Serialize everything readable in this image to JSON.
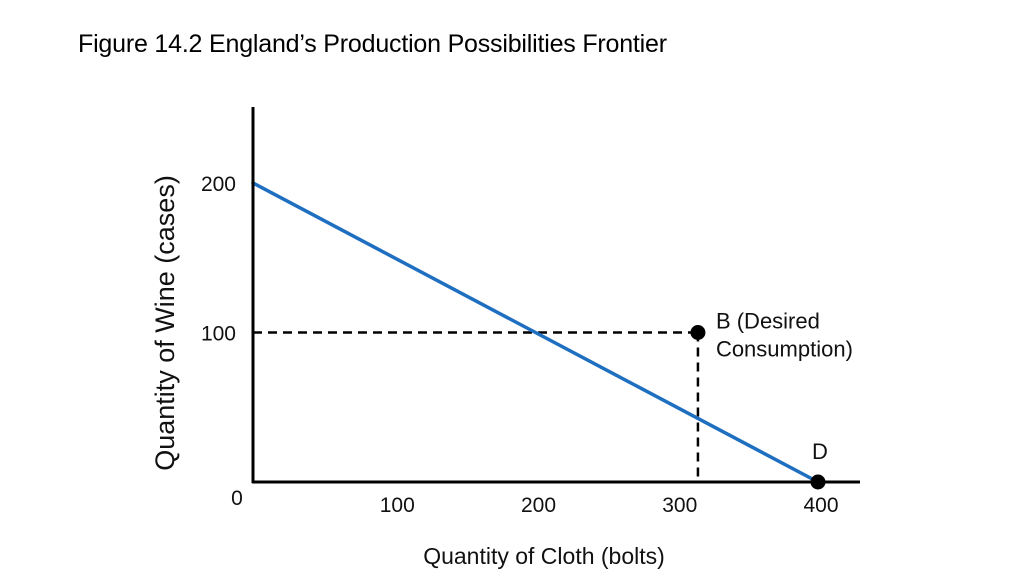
{
  "title": "Figure 14.2  England’s Production Possibilities Frontier",
  "chart_data": {
    "type": "line",
    "title": "Figure 14.2  England’s Production Possibilities Frontier",
    "xlabel": "Quantity of Cloth (bolts)",
    "ylabel": "Quantity of Wine (cases)",
    "xlim": [
      0,
      400
    ],
    "ylim": [
      0,
      250
    ],
    "x_ticks": [
      "100",
      "200",
      "300",
      "400"
    ],
    "y_ticks": [
      "200",
      "100"
    ],
    "origin_label": "0",
    "grid": false,
    "series": [
      {
        "x": [
          0,
          400
        ],
        "y": [
          200,
          0
        ],
        "color": "#1f6fc1"
      }
    ],
    "points": [
      {
        "label": "B (Desired",
        "label2": "Consumption)",
        "x": 315,
        "y": 100,
        "dashed_guides": true
      },
      {
        "label": "D",
        "x": 400,
        "y": 0,
        "dashed_guides": false
      }
    ],
    "colors": {
      "line": "#1f6fc1",
      "axis": "#000000",
      "point": "#000000"
    }
  }
}
